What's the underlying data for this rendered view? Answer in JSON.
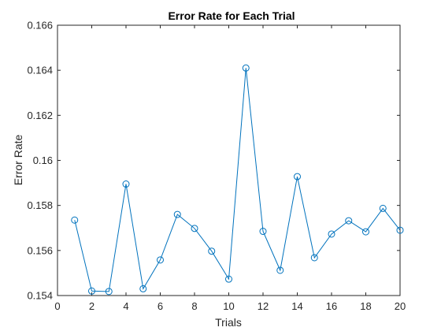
{
  "chart_data": {
    "type": "line",
    "title": "Error Rate for Each Trial",
    "xlabel": "Trials",
    "ylabel": "Error Rate",
    "xlim": [
      0,
      20
    ],
    "ylim": [
      0.154,
      0.166
    ],
    "xticks": [
      "0",
      "2",
      "4",
      "6",
      "8",
      "10",
      "12",
      "14",
      "16",
      "18",
      "20"
    ],
    "yticks": [
      "0.154",
      "0.156",
      "0.158",
      "0.16",
      "0.162",
      "0.164",
      "0.166"
    ],
    "grid": false,
    "legend": "none",
    "marker": "circle",
    "line_color": "#0072BD",
    "series": [
      {
        "x": [
          1,
          2,
          3,
          4,
          5,
          6,
          7,
          8,
          9,
          10,
          11,
          12,
          13,
          14,
          15,
          16,
          17,
          18,
          19,
          20
        ],
        "values": [
          0.15735,
          0.1542,
          0.15418,
          0.15895,
          0.1543,
          0.15558,
          0.1576,
          0.15698,
          0.15597,
          0.15473,
          0.1641,
          0.15685,
          0.15512,
          0.15928,
          0.15568,
          0.15673,
          0.15732,
          0.15683,
          0.15787,
          0.1569
        ]
      }
    ]
  }
}
